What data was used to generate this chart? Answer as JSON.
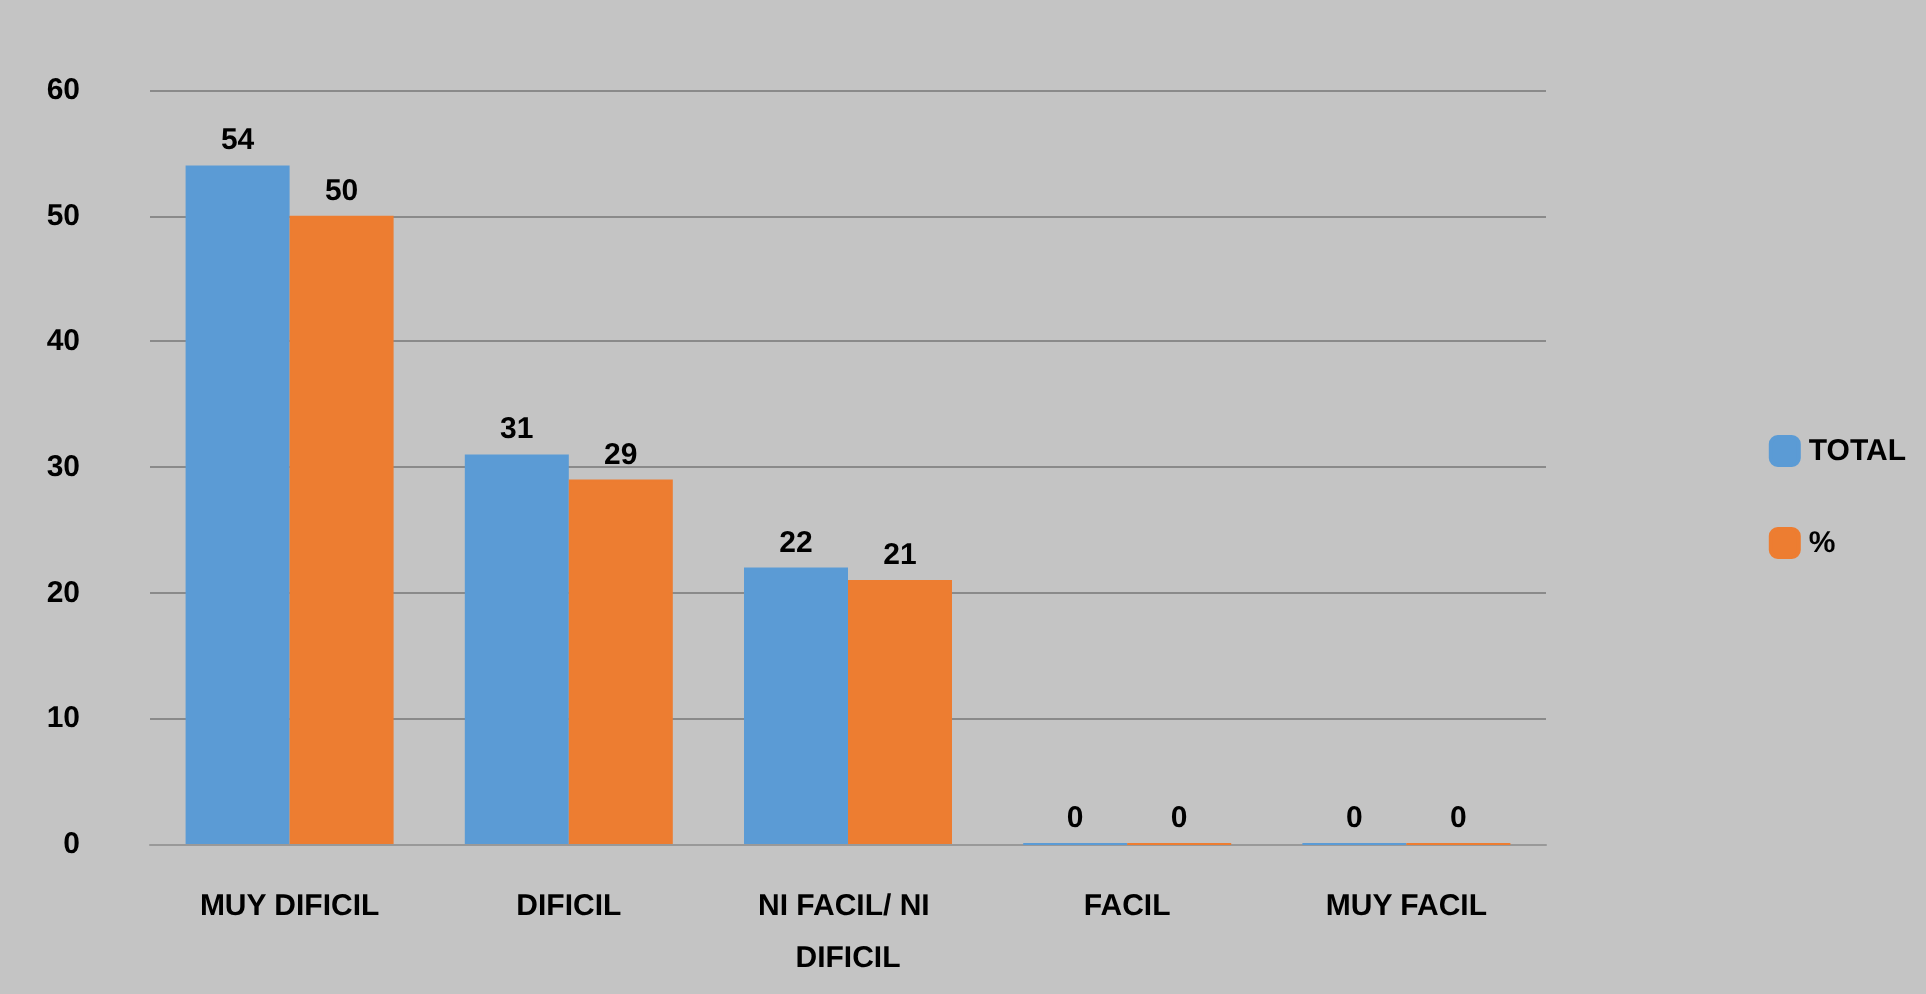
{
  "chart_data": {
    "type": "bar",
    "categories": [
      "MUY DIFICIL",
      "DIFICIL",
      "NI FACIL/ NI DIFICIL",
      "FACIL",
      "MUY FACIL"
    ],
    "series": [
      {
        "name": "TOTAL",
        "color": "#5b9bd5",
        "values": [
          54,
          31,
          22,
          0,
          0
        ]
      },
      {
        "name": "%",
        "color": "#ed7d31",
        "values": [
          50,
          29,
          21,
          0,
          0
        ]
      }
    ],
    "ylim": [
      0,
      60
    ],
    "yticks": [
      0,
      10,
      20,
      30,
      40,
      50,
      60
    ],
    "grid": "y",
    "legend": "right",
    "data_labels": true
  }
}
